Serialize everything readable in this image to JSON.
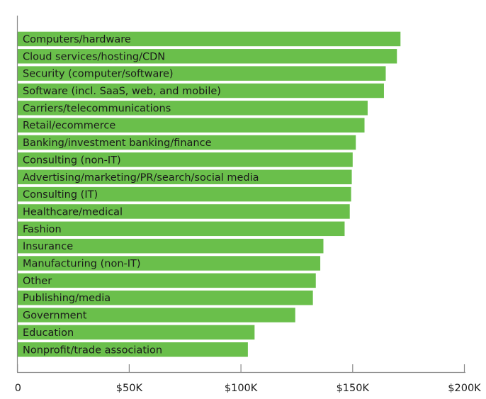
{
  "chart_data": {
    "type": "bar",
    "orientation": "horizontal",
    "title": "",
    "xlabel": "",
    "ylabel": "",
    "categories": [
      "Computers/hardware",
      "Cloud services/hosting/CDN",
      "Security (computer/software)",
      "Software (incl. SaaS, web, and mobile)",
      "Carriers/telecommunications",
      "Retail/ecommerce",
      "Banking/investment banking/finance",
      "Consulting (non-IT)",
      "Advertising/marketing/PR/search/social media",
      "Consulting (IT)",
      "Healthcare/medical",
      "Fashion",
      "Insurance",
      "Manufacturing (non-IT)",
      "Other",
      "Publishing/media",
      "Government",
      "Education",
      "Nonprofit/trade association"
    ],
    "values": [
      171400,
      169800,
      164800,
      164000,
      156700,
      155300,
      151400,
      150000,
      149600,
      149300,
      148700,
      146400,
      136900,
      135500,
      133500,
      132200,
      124300,
      106100,
      103100
    ],
    "xlim": [
      0,
      200000
    ],
    "xticks": [
      0,
      50000,
      100000,
      150000,
      200000
    ],
    "xtick_labels": [
      "0",
      "$50K",
      "$100K",
      "$150K",
      "$200K"
    ],
    "grid": false,
    "bar_color": "#6abf4b"
  }
}
